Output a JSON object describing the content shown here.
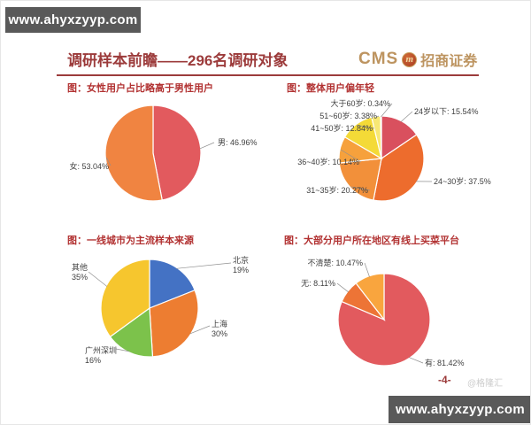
{
  "watermarks": {
    "top_left": "www.ahyxzyyp.com",
    "bottom_right": "www.ahyxzyyp.com"
  },
  "header": {
    "title": "调研样本前瞻——296名调研对象",
    "logo": {
      "cms": "CMS",
      "m_badge": "m",
      "company": "招商证券"
    },
    "accent_color": "#9c3b3b",
    "logo_gold": "#bd9460"
  },
  "footer": {
    "page_number": "-4-",
    "watermark_credit": "@格隆汇"
  },
  "chart_data": [
    {
      "type": "pie",
      "title": "图：女性用户占比略高于男性用户",
      "start_angle_deg": 0,
      "direction": "clockwise",
      "labels_style": "outside-callout",
      "slices": [
        {
          "label": "男",
          "value": 46.96,
          "text": "男: 46.96%",
          "color": "#e25a5e"
        },
        {
          "label": "女",
          "value": 53.04,
          "text": "女: 53.04%",
          "color": "#f08441"
        }
      ]
    },
    {
      "type": "pie",
      "title": "图：整体用户偏年轻",
      "start_angle_deg": 0,
      "direction": "clockwise",
      "labels_style": "outside-callout",
      "slices": [
        {
          "label": "24岁以下",
          "value": 15.54,
          "text": "24岁以下: 15.54%",
          "color": "#d9505e"
        },
        {
          "label": "24~30岁",
          "value": 37.5,
          "text": "24~30岁: 37.5%",
          "color": "#ed6c2d"
        },
        {
          "label": "31~35岁",
          "value": 20.27,
          "text": "31~35岁: 20.27%",
          "color": "#f2903a"
        },
        {
          "label": "36~40岁",
          "value": 10.14,
          "text": "36~40岁: 10.14%",
          "color": "#f6a13c"
        },
        {
          "label": "41~50岁",
          "value": 12.84,
          "text": "41~50岁: 12.84%",
          "color": "#f4da37"
        },
        {
          "label": "51~60岁",
          "value": 3.38,
          "text": "51~60岁: 3.38%",
          "color": "#f8e874"
        },
        {
          "label": "大于60岁",
          "value": 0.34,
          "text": "大于60岁: 0.34%",
          "color": "#8ecb4d"
        }
      ]
    },
    {
      "type": "pie",
      "title": "图：一线城市为主流样本来源",
      "start_angle_deg": 0,
      "direction": "clockwise",
      "labels_style": "outside-callout-two-line",
      "slices": [
        {
          "label": "北京",
          "value": 19,
          "lines": [
            "北京",
            "19%"
          ],
          "color": "#4472c4"
        },
        {
          "label": "上海",
          "value": 30,
          "lines": [
            "上海",
            "30%"
          ],
          "color": "#ed7d31"
        },
        {
          "label": "广州深圳",
          "value": 16,
          "lines": [
            "广州深圳",
            "16%"
          ],
          "color": "#7cc24b"
        },
        {
          "label": "其他",
          "value": 35,
          "lines": [
            "其他",
            "35%"
          ],
          "color": "#f6c62e"
        }
      ]
    },
    {
      "type": "pie",
      "title": "图：大部分用户所在地区有线上买菜平台",
      "start_angle_deg": 0,
      "direction": "clockwise",
      "labels_style": "outside-callout",
      "slices": [
        {
          "label": "有",
          "value": 81.42,
          "text": "有: 81.42%",
          "color": "#e25a5e"
        },
        {
          "label": "无",
          "value": 8.11,
          "text": "无: 8.11%",
          "color": "#ed7436"
        },
        {
          "label": "不清楚",
          "value": 10.47,
          "text": "不清楚: 10.47%",
          "color": "#f9a53e"
        }
      ]
    }
  ]
}
